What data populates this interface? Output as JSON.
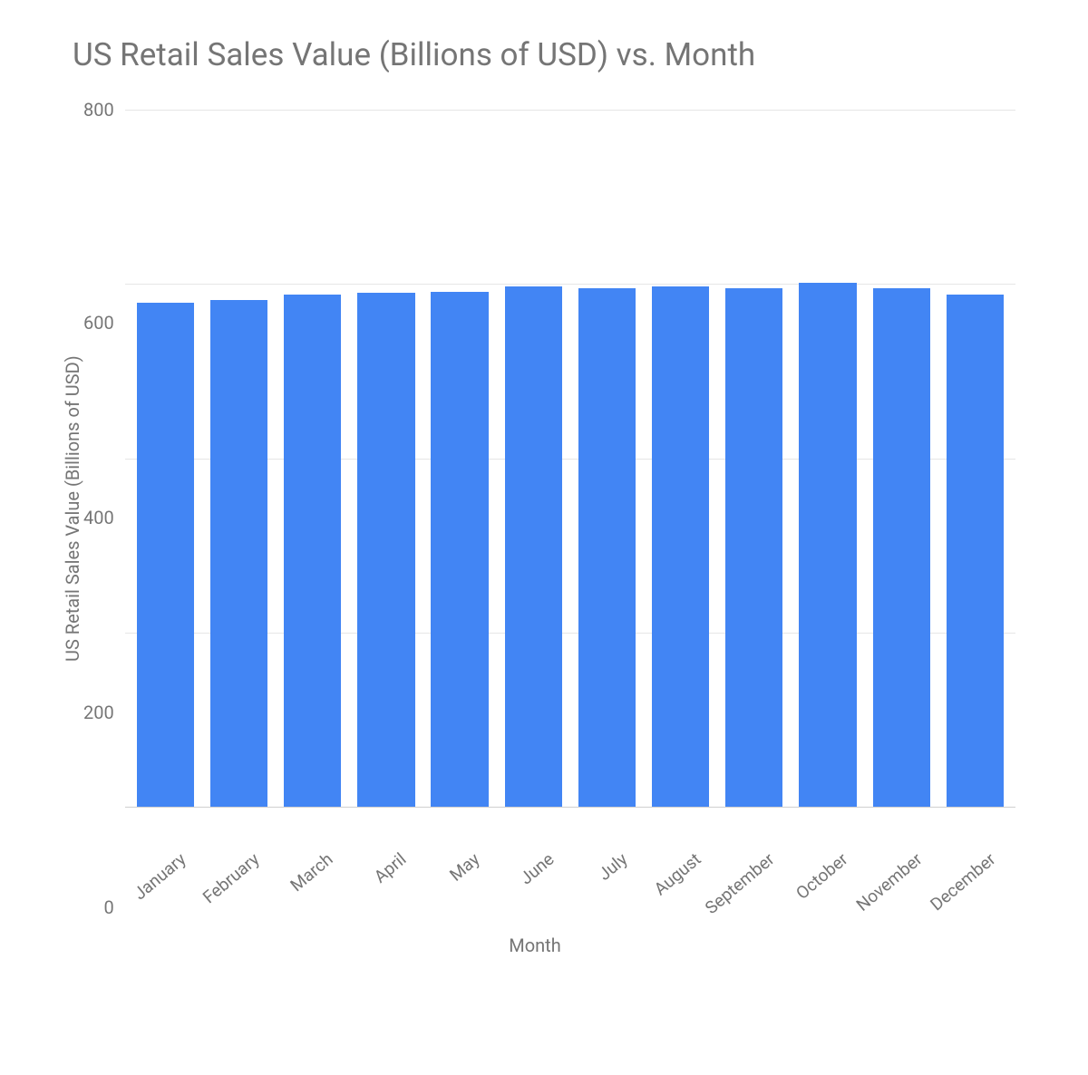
{
  "chart": {
    "type": "bar",
    "title": "US Retail Sales Value (Billions of USD) vs. Month",
    "title_fontsize": 35,
    "title_color": "#757575",
    "xlabel": "Month",
    "ylabel": "US Retail Sales Value (Billions of USD)",
    "label_fontsize": 20,
    "label_color": "#757575",
    "tick_fontsize": 20,
    "tick_color": "#757575",
    "background_color": "#ffffff",
    "grid_color": "#e6e6e6",
    "axis_line_color": "#cfcfcf",
    "ylim": [
      0,
      800
    ],
    "ytick_step": 200,
    "yticks": [
      800,
      600,
      400,
      200,
      0
    ],
    "categories": [
      "January",
      "February",
      "March",
      "April",
      "May",
      "June",
      "July",
      "August",
      "September",
      "October",
      "November",
      "December"
    ],
    "values": [
      578,
      582,
      588,
      590,
      591,
      597,
      595,
      597,
      595,
      601,
      595,
      588
    ],
    "bar_color": "#4285f4",
    "bar_width": 0.78,
    "x_tick_rotation_deg": -40
  }
}
